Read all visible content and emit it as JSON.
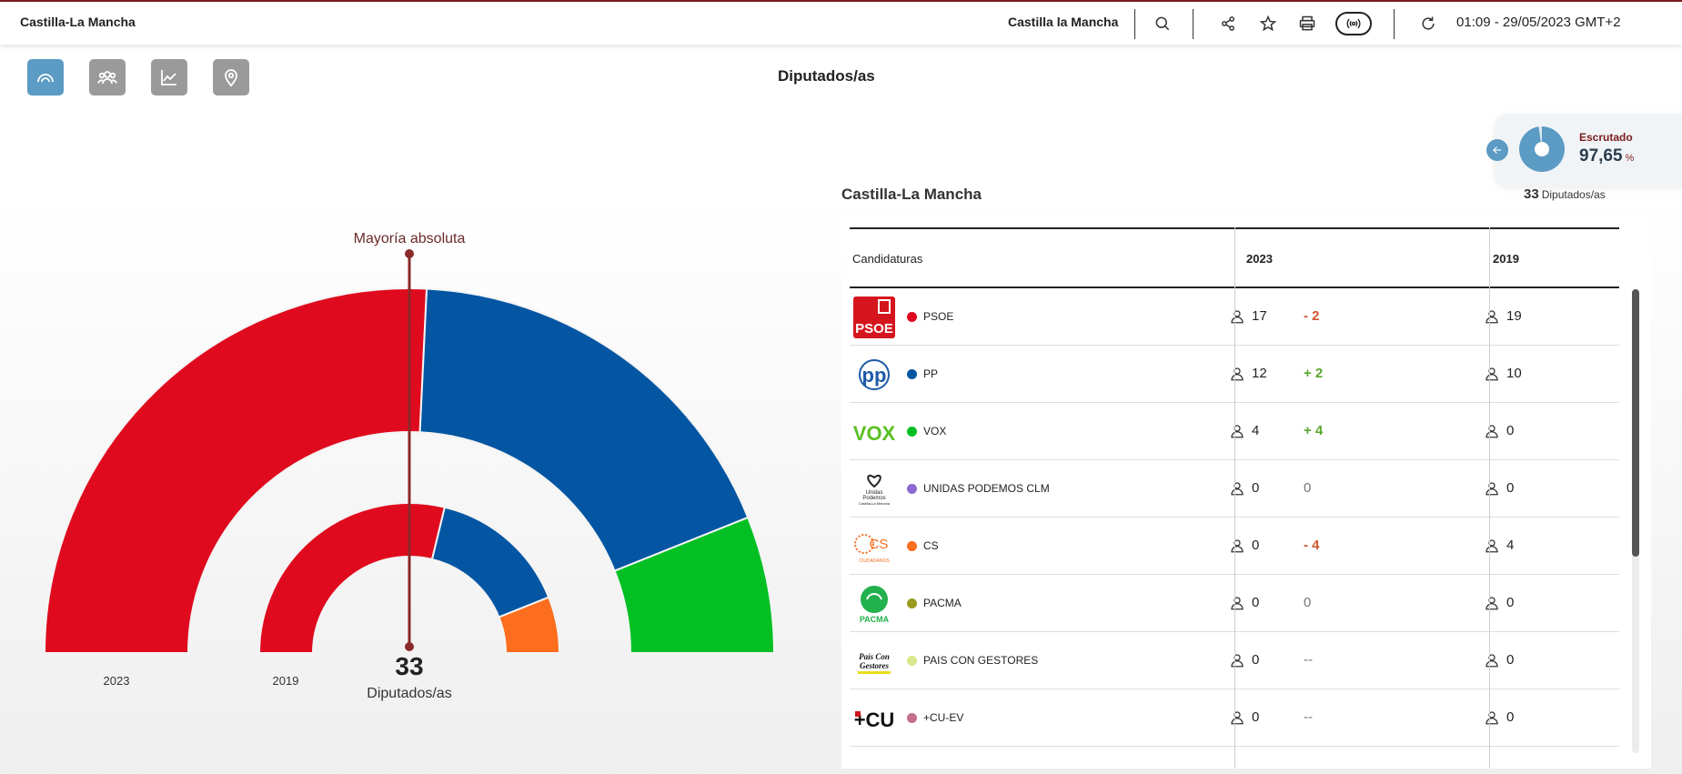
{
  "header": {
    "brand": "Castilla-La Mancha",
    "region_selector": "Castilla la Mancha",
    "timestamp": "01:09 - 29/05/2023 GMT+2",
    "icons": [
      "search-icon",
      "share-icon",
      "star-icon",
      "print-icon",
      "live-radio-icon",
      "refresh-icon"
    ]
  },
  "view_buttons": [
    "hemicycle-icon",
    "people-icon",
    "line-chart-icon",
    "map-pin-icon"
  ],
  "page": {
    "title": "Diputados/as"
  },
  "escrutado": {
    "label": "Escrutado",
    "value": "97,65",
    "unit": "%",
    "fraction": 0.9765
  },
  "colors": {
    "psoe": "#e00a1e",
    "pp": "#0456a3",
    "vox": "#02c023",
    "cs": "#fd6d1e",
    "up": "#8b6ad1",
    "pacma": "#9a9a20",
    "pais": "#d9e68a",
    "cu": "#c4708a",
    "accent": "#5b9bc4",
    "majority": "#8a2a2a"
  },
  "chart_data": {
    "type": "hemicycle",
    "majority_label": "Mayoría absoluta",
    "total_seats": "33",
    "total_label": "Diputados/as",
    "rings": [
      {
        "year": "2023",
        "seats": {
          "PSOE": 17,
          "PP": 12,
          "VOX": 4
        }
      },
      {
        "year": "2019",
        "seats": {
          "PSOE": 19,
          "PP": 10,
          "CS": 4
        }
      }
    ]
  },
  "table": {
    "region_title": "Castilla-La Mancha",
    "total_seats": "33",
    "total_seats_label": "Diputados/as",
    "headers": {
      "party": "Candidaturas",
      "y2023": "2023",
      "y2019": "2019"
    },
    "rows": [
      {
        "logo": "PSOE",
        "name": "PSOE",
        "color": "#e00a1e",
        "s2023": "17",
        "diff": "- 2",
        "diff_type": "neg",
        "s2019": "19"
      },
      {
        "logo": "pp",
        "name": "PP",
        "color": "#0456a3",
        "s2023": "12",
        "diff": "+ 2",
        "diff_type": "pos",
        "s2019": "10"
      },
      {
        "logo": "VOX",
        "name": "VOX",
        "color": "#02c023",
        "s2023": "4",
        "diff": "+ 4",
        "diff_type": "pos",
        "s2019": "0"
      },
      {
        "logo": "Unidas Podemos",
        "name": "UNIDAS PODEMOS CLM",
        "color": "#8b6ad1",
        "s2023": "0",
        "diff": "0",
        "diff_type": "zero",
        "s2019": "0"
      },
      {
        "logo": "CS",
        "name": "CS",
        "color": "#fd6d1e",
        "s2023": "0",
        "diff": "- 4",
        "diff_type": "neg",
        "s2019": "4"
      },
      {
        "logo": "PACMA",
        "name": "PACMA",
        "color": "#9a9a20",
        "s2023": "0",
        "diff": "0",
        "diff_type": "zero",
        "s2019": "0"
      },
      {
        "logo": "País Con Gestores",
        "name": "PAIS CON GESTORES",
        "color": "#d9e68a",
        "s2023": "0",
        "diff": "--",
        "diff_type": "zero",
        "s2019": "0"
      },
      {
        "logo": "+CU",
        "name": "+CU-EV",
        "color": "#c4708a",
        "s2023": "0",
        "diff": "--",
        "diff_type": "zero",
        "s2019": "0"
      }
    ]
  }
}
